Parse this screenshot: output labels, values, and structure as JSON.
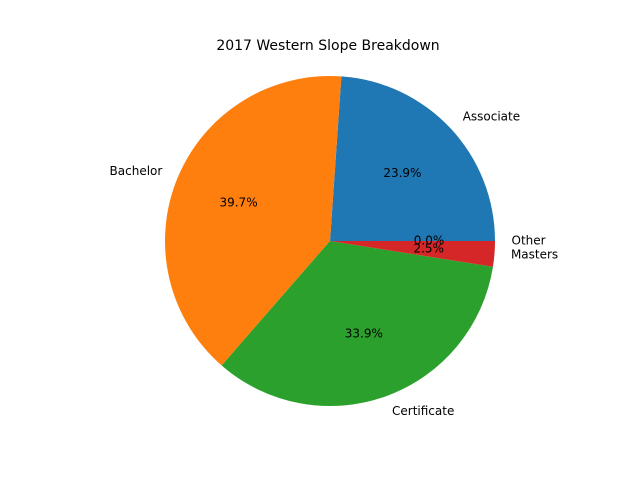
{
  "chart_data": {
    "type": "pie",
    "title": "2017 Western Slope Breakdown",
    "slices": [
      {
        "label": "Associate",
        "value": 23.9,
        "pct_label": "23.9%",
        "color": "#1f77b4"
      },
      {
        "label": "Bachelor",
        "value": 39.7,
        "pct_label": "39.7%",
        "color": "#ff7f0e"
      },
      {
        "label": "Certificate",
        "value": 33.9,
        "pct_label": "33.9%",
        "color": "#2ca02c"
      },
      {
        "label": "Masters",
        "value": 2.5,
        "pct_label": "2.5%",
        "color": "#d62728"
      },
      {
        "label": "Other",
        "value": 0.0,
        "pct_label": "0.0%",
        "color": "#9467bd"
      }
    ],
    "start_angle": 0,
    "direction": "counterclockwise"
  }
}
